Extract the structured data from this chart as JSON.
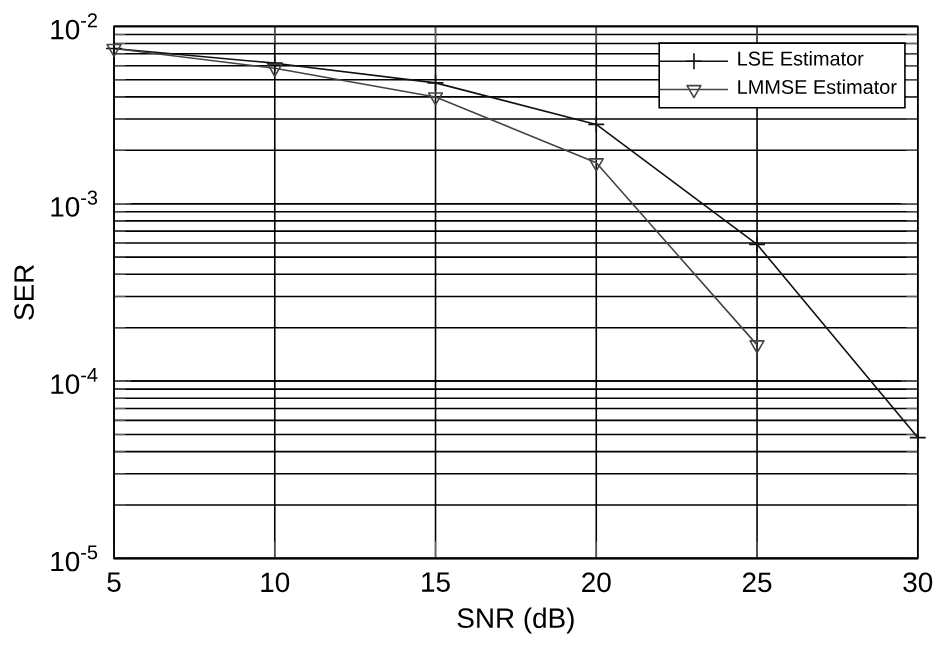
{
  "chart_data": {
    "type": "line",
    "xlabel": "SNR (dB)",
    "ylabel": "SER",
    "log": "y",
    "grid": true,
    "legend": "top right",
    "xlim": [
      5,
      30
    ],
    "ylim": [
      1e-05,
      0.01
    ],
    "xticks": [
      5,
      10,
      15,
      20,
      25,
      30
    ],
    "yticks": [
      {
        "value": 1e-05,
        "label": "10$^{-5}$"
      },
      {
        "value": 0.0001,
        "label": "10$^{-4}$"
      },
      {
        "value": 0.001,
        "label": "10$^{-3}$"
      },
      {
        "value": 0.01,
        "label": "10$^{-2}$"
      }
    ],
    "x": [
      5,
      10,
      15,
      20,
      25,
      30
    ],
    "series": [
      {
        "name": "LSE Estimator",
        "color": "#111111",
        "marker": "cross",
        "line_style": "solid",
        "values": [
          0.0075,
          0.0062,
          0.0048,
          0.0028,
          0.00059,
          4.8e-05
        ]
      },
      {
        "name": "LMMSE  Estimator",
        "color": "#444444",
        "marker": "triangle",
        "line_style": "solid",
        "values": [
          0.0075,
          0.0058,
          0.004,
          0.0017,
          0.00016,
          null
        ]
      }
    ]
  }
}
